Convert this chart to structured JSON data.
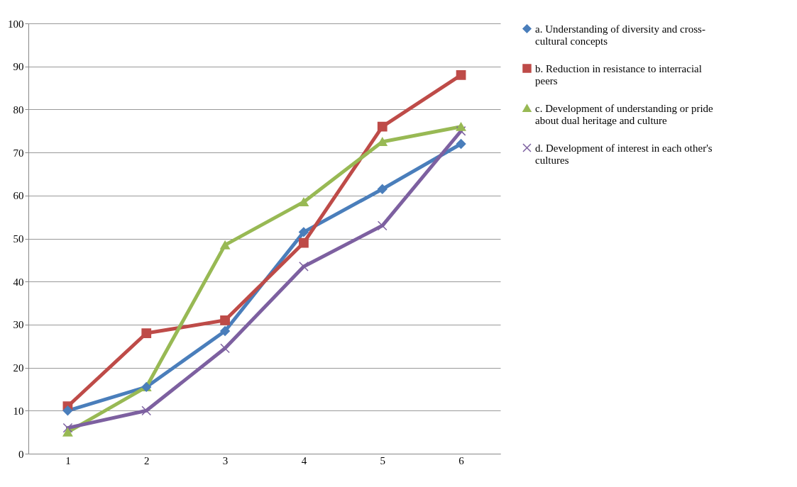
{
  "chart_data": {
    "type": "line",
    "categories": [
      "1",
      "2",
      "3",
      "4",
      "5",
      "6"
    ],
    "ylim": [
      0,
      100
    ],
    "yticks": [
      0,
      10,
      20,
      30,
      40,
      50,
      60,
      70,
      80,
      90,
      100
    ],
    "grid": "y",
    "legend": "right",
    "line_style": "solid",
    "series": [
      {
        "name": "a. Understanding of diversity and cross-cultural concepts",
        "color": "#4a7ebb",
        "marker": "diamond",
        "values": [
          10,
          15.5,
          28.5,
          51.5,
          61.5,
          72
        ]
      },
      {
        "name": "b. Reduction in resistance to interracial peers",
        "color": "#be4b48",
        "marker": "square",
        "values": [
          11,
          28,
          31,
          49,
          76,
          88
        ]
      },
      {
        "name": "c. Development of understanding or pride about dual heritage and culture",
        "color": "#98b954",
        "marker": "triangle",
        "values": [
          5,
          15.5,
          48.5,
          58.5,
          72.5,
          76
        ]
      },
      {
        "name": "d. Development of interest in each other's cultures",
        "color": "#7d60a0",
        "marker": "cross",
        "values": [
          6,
          10,
          24.5,
          43.5,
          53,
          75
        ]
      }
    ]
  }
}
